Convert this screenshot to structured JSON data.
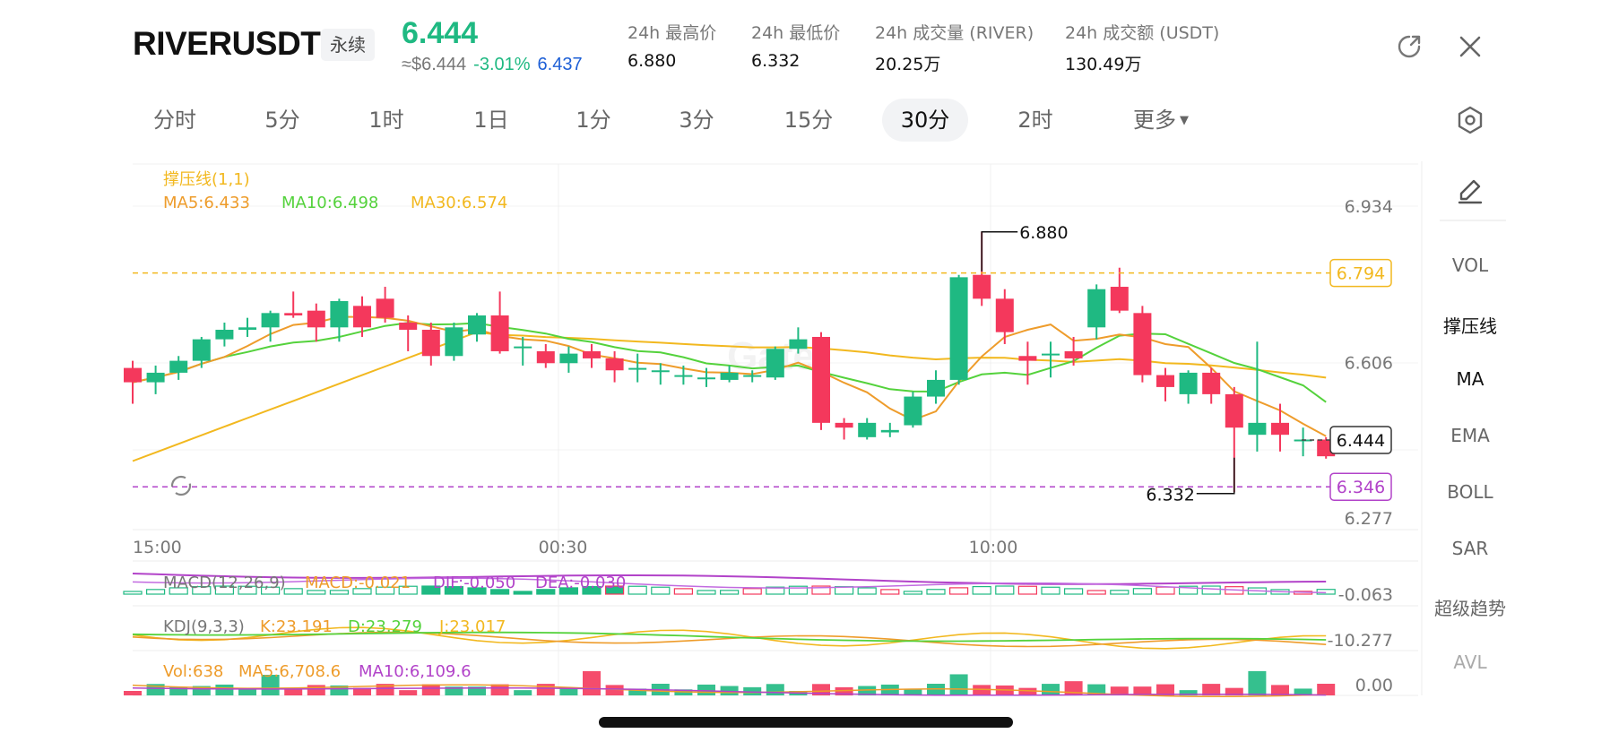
{
  "header": {
    "symbol": "RIVERUSDT",
    "contract_type": "永续",
    "last_price": "6.444",
    "usd_price": "≈$6.444",
    "change_pct": "-3.01%",
    "mark_price": "6.437",
    "stats": [
      {
        "label": "24h 最高价",
        "value": "6.880"
      },
      {
        "label": "24h 最低价",
        "value": "6.332"
      },
      {
        "label": "24h 成交量 (RIVER)",
        "value": "20.25万"
      },
      {
        "label": "24h 成交额 (USDT)",
        "value": "130.49万"
      }
    ],
    "icons": [
      "share-icon",
      "close-icon"
    ]
  },
  "tabs": [
    "分时",
    "5分",
    "1时",
    "1日",
    "1分",
    "3分",
    "15分",
    "30分",
    "2时",
    "更多"
  ],
  "active_tab": "30分",
  "settings_icon": "hexagon-settings-icon",
  "sidebar": {
    "edit_icon": "pencil-icon",
    "items": [
      "VOL",
      "撑压线",
      "MA",
      "EMA",
      "BOLL",
      "SAR",
      "超级趋势",
      "AVL"
    ]
  },
  "indicators": {
    "sr_label": "撑压线(1,1)",
    "ma5": "MA5:6.433",
    "ma10": "MA10:6.498",
    "ma30": "MA30:6.574",
    "macd_title": "MACD(12,26,9)",
    "macd_val": "MACD:-0.021",
    "dif": "DIF:-0.050",
    "dea": "DEA:-0.030",
    "kdj_title": "KDJ(9,3,3)",
    "kdj_k": "K:23.191",
    "kdj_d": "D:23.279",
    "kdj_j": "J:23.017",
    "vol_title": "Vol:638",
    "vol_ma5": "MA5:6,708.6",
    "vol_ma10": "MA10:6,109.6"
  },
  "colors": {
    "up": "#1fb982",
    "down": "#f4385c",
    "ma5": "#ee9c2b",
    "ma10": "#54d23c",
    "ma30": "#f2b81f",
    "purple": "#b243c9",
    "resistance": "#f2b81f",
    "support": "#b243c9"
  },
  "chart_data": {
    "type": "candlestick",
    "interval": "30分",
    "x_ticks": [
      "15:00",
      "00:30",
      "10:00"
    ],
    "y_ticks": [
      6.934,
      6.606,
      6.277
    ],
    "y_range": [
      6.277,
      6.934
    ],
    "last_price_label": "6.444",
    "resistance_label": "6.794",
    "support_label": "6.346",
    "high_marker": "6.880",
    "low_marker": "6.332",
    "macd_axis_label": "-0.063",
    "kdj_axis_label": "-10.277",
    "vol_axis_label": "0.00",
    "candles": [
      [
        6.595,
        6.565,
        6.61,
        6.52
      ],
      [
        6.565,
        6.585,
        6.6,
        6.54
      ],
      [
        6.585,
        6.61,
        6.62,
        6.57
      ],
      [
        6.61,
        6.655,
        6.66,
        6.595
      ],
      [
        6.655,
        6.675,
        6.69,
        6.64
      ],
      [
        6.675,
        6.68,
        6.7,
        6.66
      ],
      [
        6.68,
        6.71,
        6.715,
        6.65
      ],
      [
        6.71,
        6.705,
        6.755,
        6.7
      ],
      [
        6.715,
        6.68,
        6.73,
        6.65
      ],
      [
        6.68,
        6.735,
        6.74,
        6.65
      ],
      [
        6.725,
        6.68,
        6.745,
        6.66
      ],
      [
        6.74,
        6.7,
        6.765,
        6.69
      ],
      [
        6.69,
        6.675,
        6.705,
        6.63
      ],
      [
        6.675,
        6.62,
        6.69,
        6.6
      ],
      [
        6.62,
        6.68,
        6.69,
        6.61
      ],
      [
        6.665,
        6.705,
        6.71,
        6.65
      ],
      [
        6.705,
        6.63,
        6.755,
        6.625
      ],
      [
        6.64,
        6.64,
        6.66,
        6.6
      ],
      [
        6.63,
        6.605,
        6.645,
        6.595
      ],
      [
        6.605,
        6.625,
        6.64,
        6.585
      ],
      [
        6.63,
        6.615,
        6.645,
        6.595
      ],
      [
        6.615,
        6.59,
        6.63,
        6.565
      ],
      [
        6.595,
        6.595,
        6.625,
        6.565
      ],
      [
        6.59,
        6.59,
        6.605,
        6.56
      ],
      [
        6.58,
        6.58,
        6.6,
        6.56
      ],
      [
        6.575,
        6.575,
        6.595,
        6.555
      ],
      [
        6.57,
        6.585,
        6.6,
        6.565
      ],
      [
        6.58,
        6.58,
        6.59,
        6.565
      ],
      [
        6.575,
        6.635,
        6.64,
        6.57
      ],
      [
        6.635,
        6.655,
        6.68,
        6.625
      ],
      [
        6.66,
        6.48,
        6.67,
        6.465
      ],
      [
        6.48,
        6.47,
        6.49,
        6.445
      ],
      [
        6.45,
        6.48,
        6.49,
        6.445
      ],
      [
        6.46,
        6.465,
        6.48,
        6.45
      ],
      [
        6.475,
        6.535,
        6.545,
        6.47
      ],
      [
        6.535,
        6.57,
        6.59,
        6.52
      ],
      [
        6.57,
        6.785,
        6.79,
        6.56
      ],
      [
        6.79,
        6.74,
        6.88,
        6.725
      ],
      [
        6.74,
        6.67,
        6.76,
        6.645
      ],
      [
        6.62,
        6.61,
        6.65,
        6.56
      ],
      [
        6.625,
        6.625,
        6.65,
        6.575
      ],
      [
        6.63,
        6.615,
        6.66,
        6.6
      ],
      [
        6.68,
        6.76,
        6.77,
        6.655
      ],
      [
        6.765,
        6.715,
        6.805,
        6.71
      ],
      [
        6.71,
        6.58,
        6.725,
        6.565
      ],
      [
        6.58,
        6.555,
        6.595,
        6.525
      ],
      [
        6.54,
        6.585,
        6.59,
        6.52
      ],
      [
        6.585,
        6.54,
        6.595,
        6.52
      ],
      [
        6.54,
        6.47,
        6.555,
        6.335
      ],
      [
        6.455,
        6.48,
        6.65,
        6.42
      ],
      [
        6.48,
        6.455,
        6.52,
        6.42
      ],
      [
        6.445,
        6.445,
        6.47,
        6.41
      ],
      [
        6.445,
        6.41,
        6.45,
        6.405
      ]
    ]
  }
}
